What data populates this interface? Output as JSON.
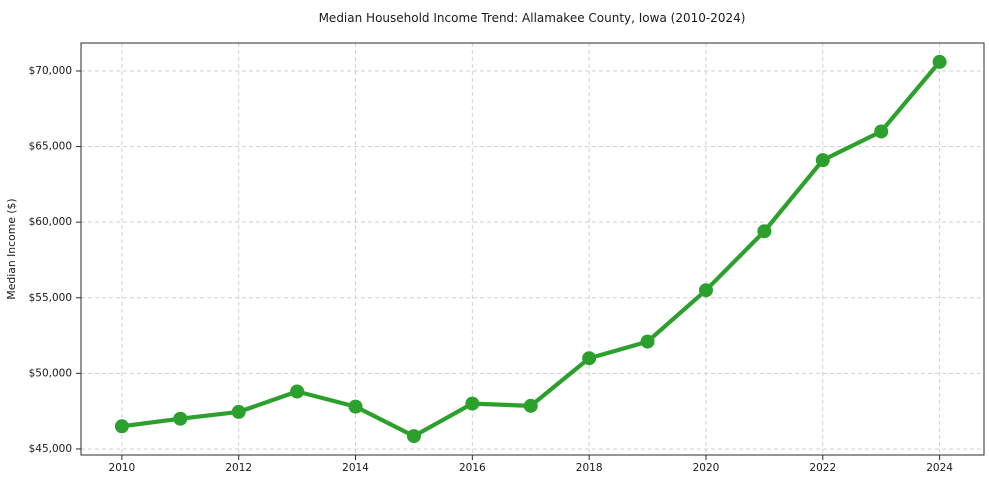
{
  "chart_data": {
    "type": "line",
    "title": "Median Household Income Trend: Allamakee County, Iowa (2010-2024)",
    "xlabel": "",
    "ylabel": "Median Income ($)",
    "x": [
      2010,
      2011,
      2012,
      2013,
      2014,
      2015,
      2016,
      2017,
      2018,
      2019,
      2020,
      2021,
      2022,
      2023,
      2024
    ],
    "series": [
      {
        "name": "Median Household Income",
        "values": [
          46500,
          47000,
          47450,
          48800,
          47800,
          45850,
          48000,
          47850,
          51000,
          52100,
          55500,
          59400,
          64100,
          66000,
          70600
        ],
        "color": "#2ca02c"
      }
    ],
    "xticks": [
      2010,
      2012,
      2014,
      2016,
      2018,
      2020,
      2022,
      2024
    ],
    "yticks": [
      45000,
      50000,
      55000,
      60000,
      65000,
      70000
    ],
    "ytick_prefix": "$",
    "xlim": [
      2009.3,
      2024.76
    ],
    "ylim": [
      44600,
      71850
    ],
    "grid": true,
    "grid_style": "dashed",
    "grid_color": "#c9c9c9",
    "legend": false,
    "background_color": "#ffffff",
    "accent_color": "#2ca02c"
  }
}
